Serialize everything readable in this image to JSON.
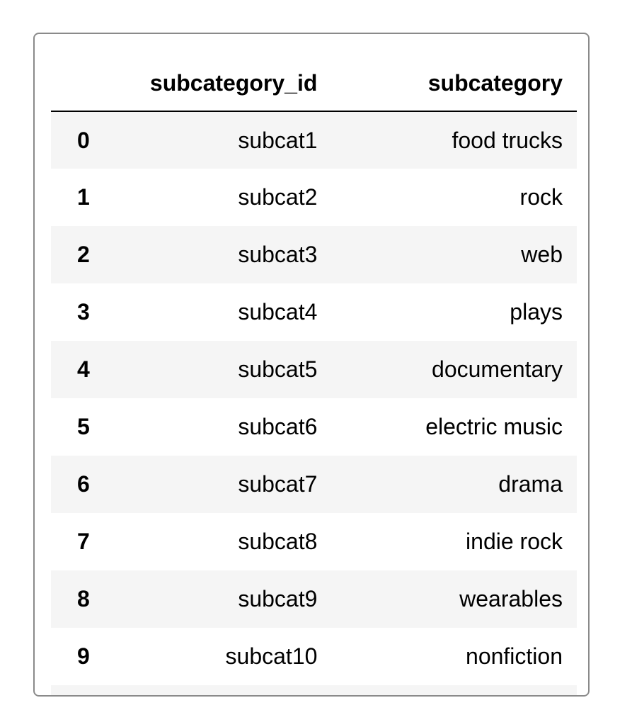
{
  "table": {
    "index_header": "",
    "columns": [
      "subcategory_id",
      "subcategory"
    ],
    "rows": [
      {
        "index": "0",
        "subcategory_id": "subcat1",
        "subcategory": "food trucks"
      },
      {
        "index": "1",
        "subcategory_id": "subcat2",
        "subcategory": "rock"
      },
      {
        "index": "2",
        "subcategory_id": "subcat3",
        "subcategory": "web"
      },
      {
        "index": "3",
        "subcategory_id": "subcat4",
        "subcategory": "plays"
      },
      {
        "index": "4",
        "subcategory_id": "subcat5",
        "subcategory": "documentary"
      },
      {
        "index": "5",
        "subcategory_id": "subcat6",
        "subcategory": "electric music"
      },
      {
        "index": "6",
        "subcategory_id": "subcat7",
        "subcategory": "drama"
      },
      {
        "index": "7",
        "subcategory_id": "subcat8",
        "subcategory": "indie rock"
      },
      {
        "index": "8",
        "subcategory_id": "subcat9",
        "subcategory": "wearables"
      },
      {
        "index": "9",
        "subcategory_id": "subcat10",
        "subcategory": "nonfiction"
      }
    ]
  },
  "colors": {
    "stripe": "#f5f5f5",
    "border": "#8a8a8a",
    "header_rule": "#000000"
  }
}
